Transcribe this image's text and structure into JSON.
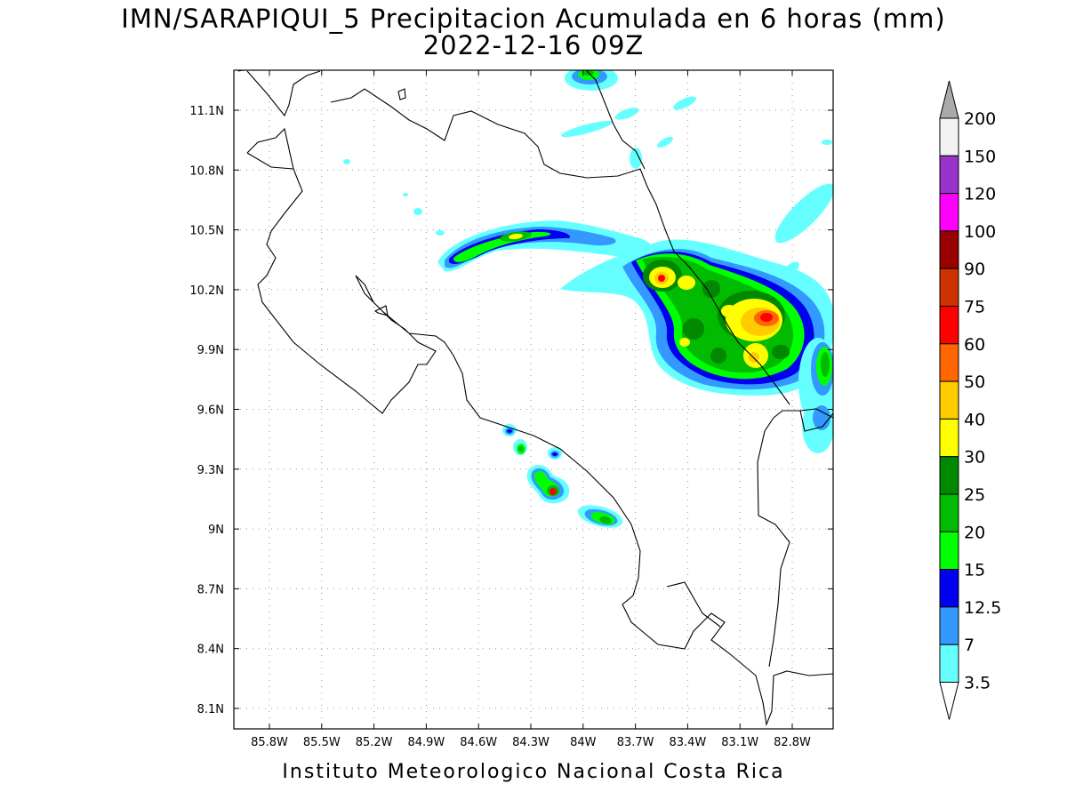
{
  "title": {
    "line1": "IMN/SARAPIQUI_5 Precipitacion Acumulada en 6 horas (mm)",
    "line2": "2022-12-16 09Z"
  },
  "footer": "Instituto Meteorologico Nacional Costa Rica",
  "map": {
    "lon_ticks": [
      "85.8W",
      "85.5W",
      "85.2W",
      "84.9W",
      "84.6W",
      "84.3W",
      "84W",
      "83.7W",
      "83.4W",
      "83.1W",
      "82.8W"
    ],
    "lat_ticks": [
      "11.1N",
      "10.8N",
      "10.5N",
      "10.2N",
      "9.9N",
      "9.6N",
      "9.3N",
      "9N",
      "8.7N",
      "8.4N",
      "8.1N"
    ]
  },
  "colorbar": {
    "labels": [
      "200",
      "150",
      "120",
      "100",
      "90",
      "75",
      "60",
      "50",
      "40",
      "30",
      "25",
      "20",
      "15",
      "12.5",
      "7",
      "3.5"
    ],
    "colors": [
      "#f2f2f2",
      "#9933cc",
      "#ff00ff",
      "#990000",
      "#cc3300",
      "#ff0000",
      "#ff6600",
      "#ffcc00",
      "#ffff00",
      "#008800",
      "#00bb00",
      "#00ff00",
      "#0000ee",
      "#3399ff",
      "#66ffff"
    ],
    "over_color": "#aaaaaa",
    "under_color": "#ffffff"
  }
}
